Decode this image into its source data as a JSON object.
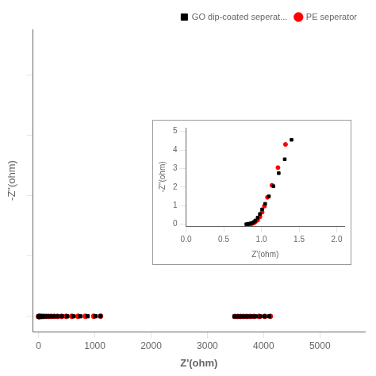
{
  "chart_data": [
    {
      "type": "scatter",
      "xlabel": "Z'(ohm)",
      "ylabel": "-Z\"(ohm)",
      "xlim": [
        -100,
        5800
      ],
      "ylim": [
        -500,
        9500
      ],
      "xticks": [
        0,
        1000,
        2000,
        3000,
        4000,
        5000
      ],
      "yticks": [
        0,
        2000,
        4000,
        6000,
        8000
      ],
      "tick_labels": "x",
      "grid": false,
      "legend": "upper right",
      "series": [
        {
          "name": "GO dip-coated seperat...",
          "color": "black",
          "marker": "square",
          "x": [
            0,
            2,
            4,
            7,
            10,
            15,
            22,
            32,
            47,
            65,
            90,
            125,
            165,
            215,
            270,
            340,
            420,
            510,
            620,
            740,
            870,
            1010,
            1100,
            3480,
            3540,
            3600,
            3660,
            3720,
            3790,
            3860,
            3940,
            4020,
            4100
          ],
          "values": [
            0,
            0.02,
            0.05,
            0.09,
            0.15,
            0.22,
            0.32,
            0.47,
            0.65,
            0.88,
            1.15,
            1.5,
            1.9,
            2.35,
            2.8,
            3.3,
            3.8,
            4.35,
            4.95,
            5.65,
            6.4,
            7.2,
            8.1,
            0.05,
            0.08,
            0.13,
            0.22,
            0.4,
            0.75,
            1.3,
            1.95,
            3.0,
            4.55
          ]
        },
        {
          "name": "PE seperator",
          "color": "red",
          "marker": "circle",
          "x": [
            0,
            1,
            3,
            5,
            8,
            12,
            18,
            27,
            40,
            57,
            78,
            105,
            138,
            177,
            222,
            275,
            335,
            405,
            490,
            590,
            700,
            830,
            980,
            1100,
            3490,
            3540,
            3590,
            3640,
            3700,
            3760,
            3830,
            3920,
            4020,
            4120
          ],
          "values": [
            0,
            0.02,
            0.04,
            0.07,
            0.12,
            0.18,
            0.27,
            0.4,
            0.57,
            0.78,
            1.02,
            1.32,
            1.67,
            2.05,
            2.48,
            2.98,
            3.52,
            4.1,
            4.75,
            5.5,
            6.35,
            7.3,
            8.4,
            9.6,
            0.04,
            0.07,
            0.12,
            0.22,
            0.4,
            0.75,
            1.25,
            2.0,
            3.1,
            4.3
          ]
        }
      ]
    },
    {
      "type": "scatter",
      "xlabel": "Z'(ohm)",
      "ylabel": "-Z\"(ohm)",
      "xlim": [
        0.0,
        2.1
      ],
      "ylim": [
        -0.1,
        5.2
      ],
      "xticks": [
        {
          "value": 0,
          "label": "0.0"
        },
        {
          "value": 0.5,
          "label": "0.5"
        },
        {
          "value": 1,
          "label": "1.0"
        },
        {
          "value": 1.5,
          "label": "1.5"
        },
        {
          "value": 2,
          "label": "2.0"
        }
      ],
      "yticks": [
        0,
        1,
        2,
        3,
        4,
        5
      ],
      "grid": false,
      "series": [
        {
          "color": "black",
          "marker": "square",
          "x": [
            0.8,
            0.82,
            0.84,
            0.86,
            0.88,
            0.9,
            0.92,
            0.95,
            0.98,
            1.01,
            1.05,
            1.1,
            1.16,
            1.23,
            1.31,
            1.4
          ],
          "values": [
            0.0,
            0.01,
            0.02,
            0.04,
            0.07,
            0.12,
            0.2,
            0.35,
            0.55,
            0.8,
            1.1,
            1.5,
            2.05,
            2.75,
            3.5,
            4.55
          ]
        },
        {
          "color": "red",
          "marker": "circle",
          "x": [
            0.82,
            0.84,
            0.86,
            0.88,
            0.9,
            0.92,
            0.95,
            0.98,
            1.01,
            1.04,
            1.08,
            1.14,
            1.22,
            1.32
          ],
          "values": [
            0.0,
            0.01,
            0.02,
            0.04,
            0.07,
            0.13,
            0.22,
            0.4,
            0.65,
            0.98,
            1.45,
            2.1,
            3.05,
            4.3
          ]
        }
      ]
    }
  ]
}
